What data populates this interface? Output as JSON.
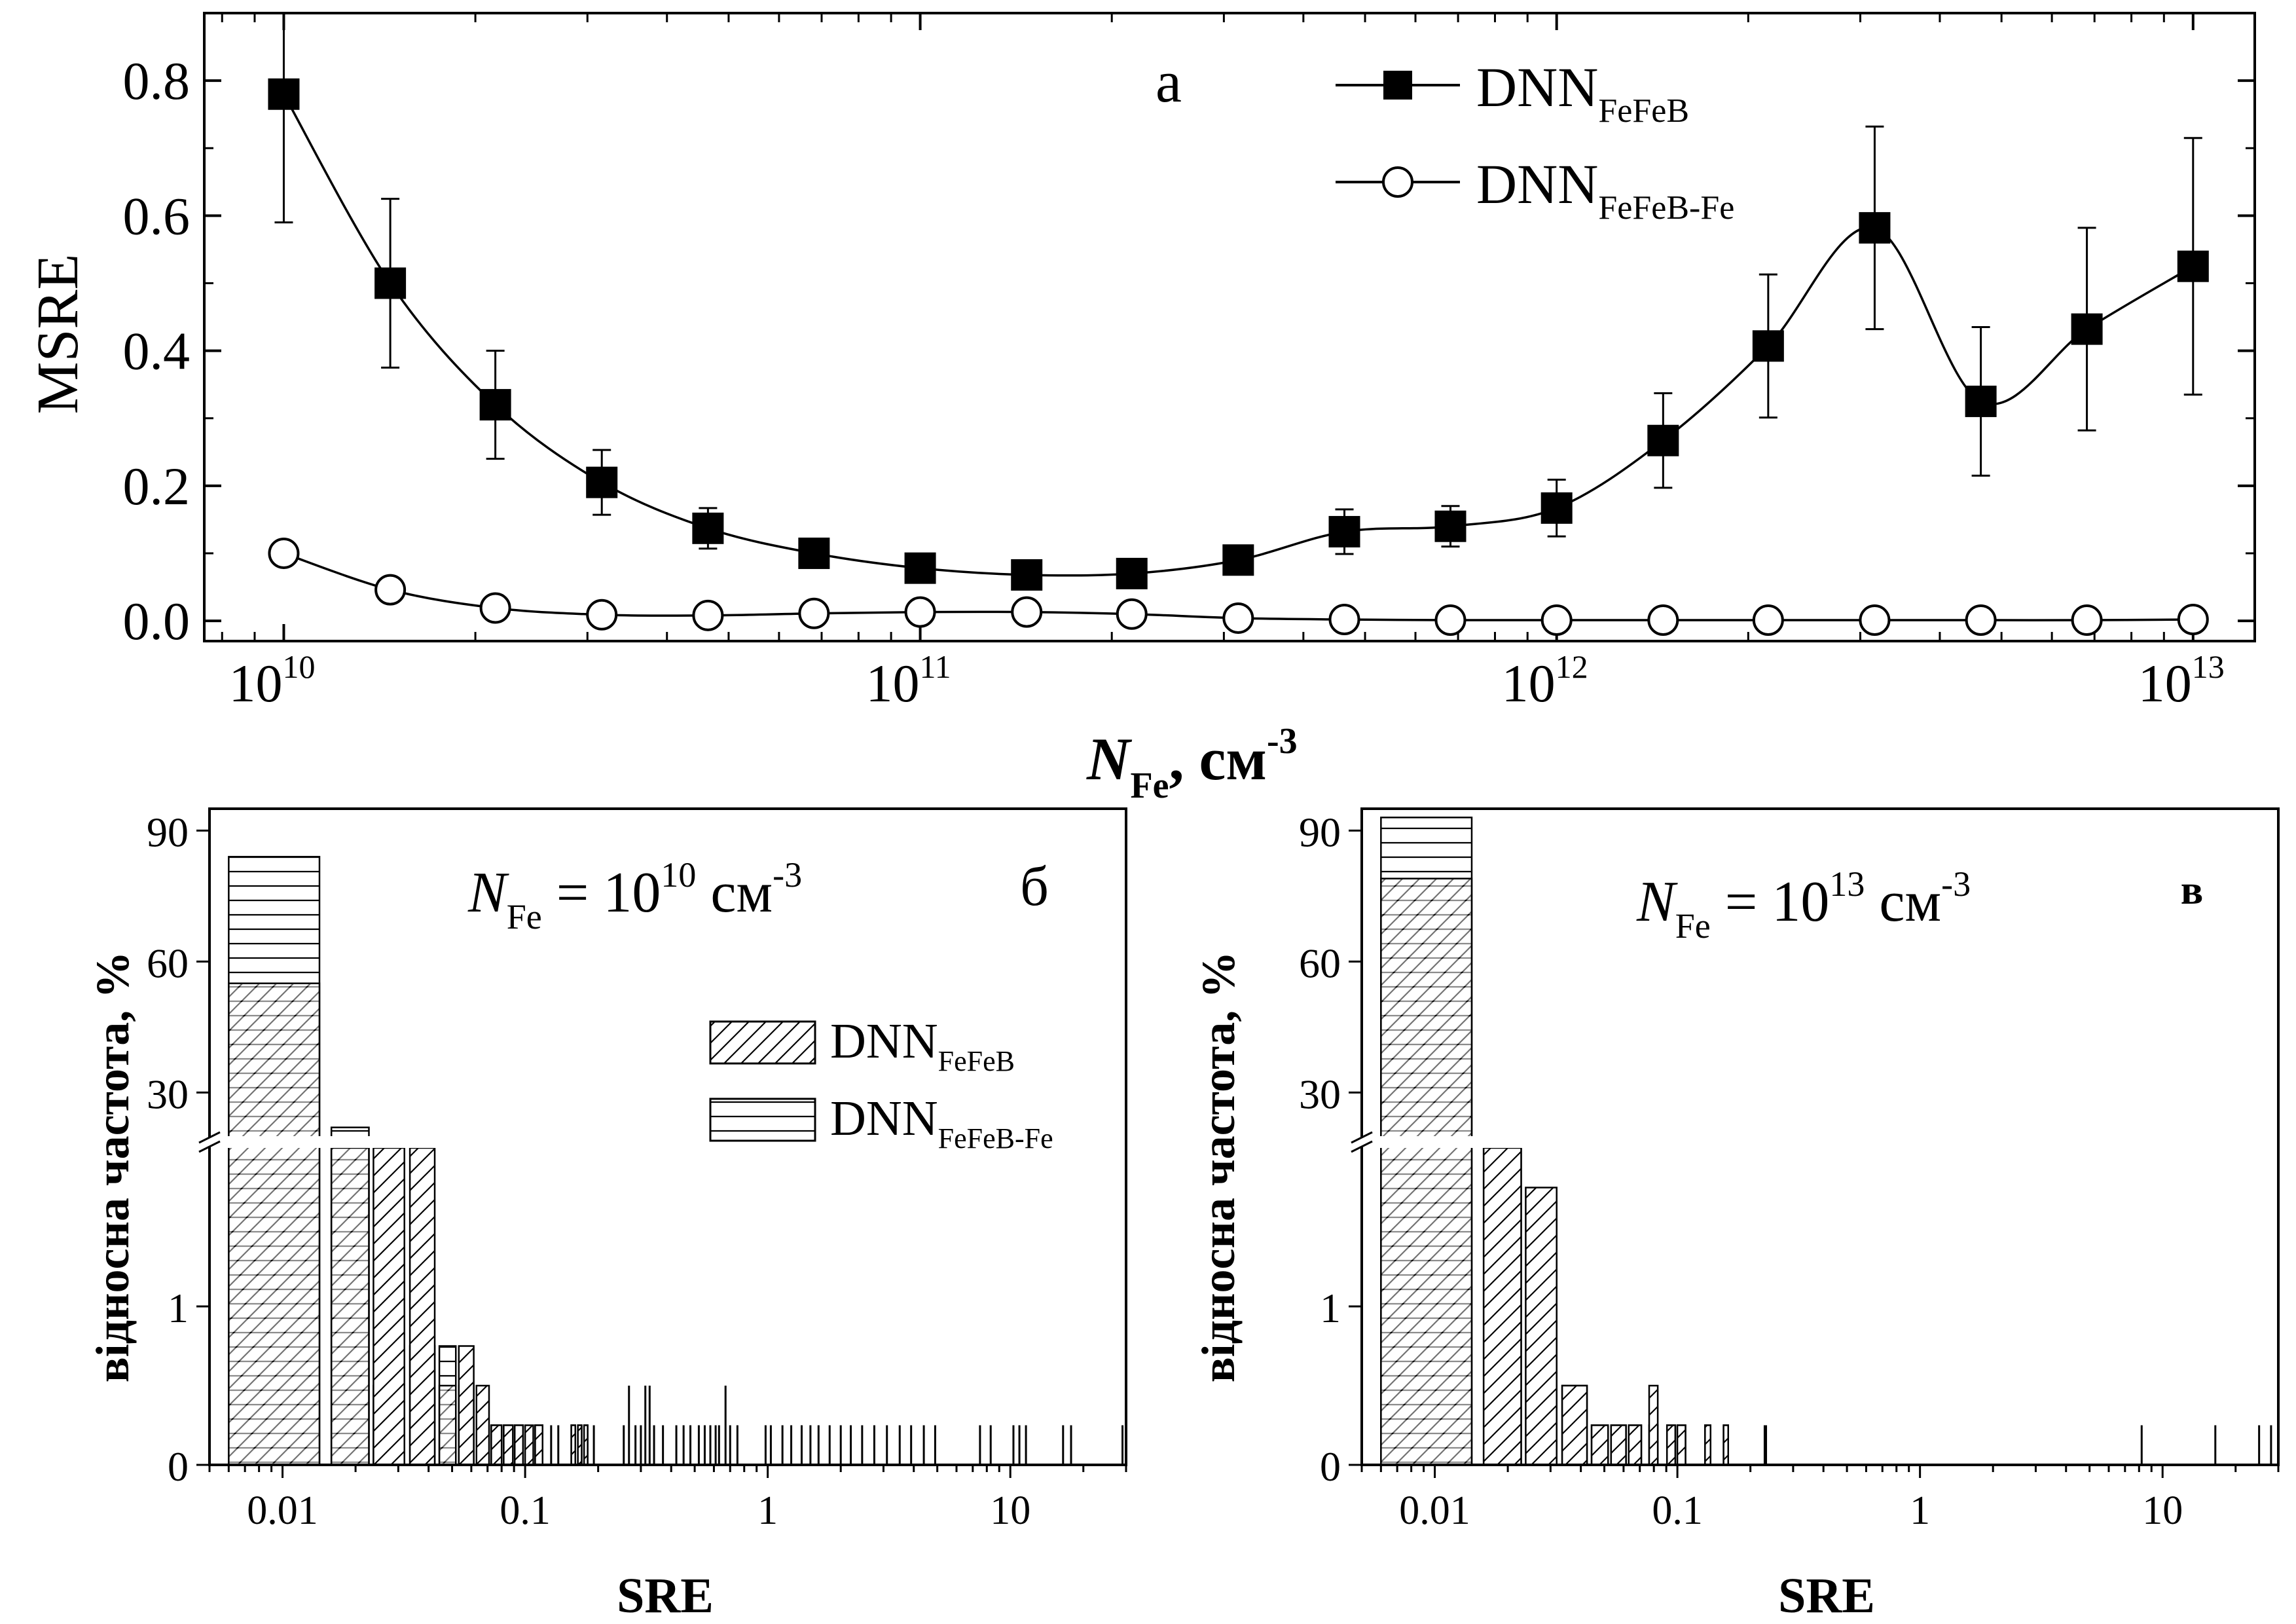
{
  "chart_data": [
    {
      "panel": "а",
      "type": "line",
      "xlabel": "N",
      "xlabel_sub": "Fe",
      "xlabel_unit": ", см",
      "xlabel_unit_sup": "-3",
      "ylabel": "MSRE",
      "x_scale": "log",
      "xlim": [
        7500000000.0,
        12500000000000.0
      ],
      "ylim": [
        -0.03,
        0.9
      ],
      "yticks": [
        "0.0",
        "0.2",
        "0.4",
        "0.6",
        "0.8"
      ],
      "xticks": [
        {
          "base": "10",
          "exp": "10"
        },
        {
          "base": "10",
          "exp": "11"
        },
        {
          "base": "10",
          "exp": "12"
        },
        {
          "base": "10",
          "exp": "13"
        }
      ],
      "x": [
        10000000000.0,
        14700000000.0,
        21500000000.0,
        31600000000.0,
        46400000000.0,
        68100000000.0,
        100000000000.0,
        147000000000.0,
        215000000000.0,
        316000000000.0,
        464000000000.0,
        681000000000.0,
        1000000000000.0,
        1470000000000.0,
        2150000000000.0,
        3160000000000.0,
        4640000000000.0,
        6810000000000.0,
        10000000000000.0
      ],
      "series": [
        {
          "name": "DNN",
          "name_sub": "FeFeB",
          "marker": "square-filled",
          "values": [
            0.78,
            0.5,
            0.32,
            0.205,
            0.137,
            0.1,
            0.078,
            0.068,
            0.07,
            0.09,
            0.132,
            0.14,
            0.167,
            0.267,
            0.407,
            0.582,
            0.325,
            0.432,
            0.525
          ],
          "err": [
            0.19,
            0.125,
            0.08,
            0.048,
            0.03,
            0.012,
            0.01,
            0.01,
            0.01,
            0.012,
            0.033,
            0.03,
            0.042,
            0.07,
            0.106,
            0.15,
            0.11,
            0.15,
            0.19
          ]
        },
        {
          "name": "DNN",
          "name_sub": "FeFeB-Fe",
          "marker": "circle-open",
          "values": [
            0.1,
            0.046,
            0.019,
            0.009,
            0.008,
            0.011,
            0.013,
            0.013,
            0.01,
            0.004,
            0.002,
            0.001,
            0.001,
            0.001,
            0.001,
            0.001,
            0.001,
            0.001,
            0.002
          ]
        }
      ]
    },
    {
      "panel": "б",
      "type": "bar",
      "annotation": {
        "main": "N",
        "sub": "Fe",
        "eq": " = 10",
        "sup": "10",
        "unit": " см",
        "unit_sup": "-3"
      },
      "xlabel": "SRE",
      "ylabel": "відносна частота, %",
      "x_scale": "log",
      "xlim": [
        0.005,
        30
      ],
      "xticks": [
        "0.01",
        "0.1",
        "1",
        "10"
      ],
      "y_broken": true,
      "ylim_lower": [
        0,
        2
      ],
      "ylim_upper": [
        20,
        95
      ],
      "yticks_lower": [
        "0",
        "1"
      ],
      "yticks_upper": [
        "30",
        "60",
        "90"
      ],
      "legend": [
        {
          "name": "DNN",
          "sub": "FeFeB",
          "pattern": "diagonal"
        },
        {
          "name": "DNN",
          "sub": "FeFeB-Fe",
          "pattern": "horizontal"
        }
      ],
      "bins": [
        {
          "x0": 0.006,
          "x1": 0.0142,
          "a": 55,
          "b": 84
        },
        {
          "x0": 0.0159,
          "x1": 0.0227,
          "a": 10,
          "b": 22
        },
        {
          "x0": 0.0237,
          "x1": 0.0318,
          "a": 5,
          "b": 0.5
        },
        {
          "x0": 0.0335,
          "x1": 0.0424,
          "a": 2.5,
          "b": 0.75
        },
        {
          "x0": 0.0443,
          "x1": 0.0518,
          "a": 0.5,
          "b": 0.75
        },
        {
          "x0": 0.0533,
          "x1": 0.0614,
          "a": 0.75,
          "b": 0.5
        },
        {
          "x0": 0.063,
          "x1": 0.071,
          "a": 0.5,
          "b": 0.25
        },
        {
          "x0": 0.0725,
          "x1": 0.08,
          "a": 0.25,
          "b": 0.25
        },
        {
          "x0": 0.0816,
          "x1": 0.089,
          "a": 0.25,
          "b": 0.25
        },
        {
          "x0": 0.0906,
          "x1": 0.098,
          "a": 0.25,
          "b": 0.25
        },
        {
          "x0": 0.1,
          "x1": 0.108,
          "a": 0.25,
          "b": 0
        },
        {
          "x0": 0.11,
          "x1": 0.118,
          "a": 0.25,
          "b": 0.25
        },
        {
          "x0": 0.155,
          "x1": 0.161,
          "a": 0.25,
          "b": 0.25
        },
        {
          "x0": 0.165,
          "x1": 0.171,
          "a": 0.25,
          "b": 0.25
        },
        {
          "x0": 0.175,
          "x1": 0.181,
          "a": 0.25,
          "b": 0.25
        }
      ],
      "spikes": [
        {
          "x": 0.128,
          "h": 0.25
        },
        {
          "x": 0.137,
          "h": 0.25
        },
        {
          "x": 0.192,
          "h": 0.25
        },
        {
          "x": 0.255,
          "h": 0.25
        },
        {
          "x": 0.268,
          "h": 0.5
        },
        {
          "x": 0.285,
          "h": 0.25
        },
        {
          "x": 0.3,
          "h": 0.25
        },
        {
          "x": 0.313,
          "h": 0.5
        },
        {
          "x": 0.326,
          "h": 0.5
        },
        {
          "x": 0.34,
          "h": 0.25
        },
        {
          "x": 0.37,
          "h": 0.25
        },
        {
          "x": 0.42,
          "h": 0.25
        },
        {
          "x": 0.45,
          "h": 0.25
        },
        {
          "x": 0.48,
          "h": 0.25
        },
        {
          "x": 0.52,
          "h": 0.25
        },
        {
          "x": 0.55,
          "h": 0.25
        },
        {
          "x": 0.58,
          "h": 0.25
        },
        {
          "x": 0.61,
          "h": 0.25
        },
        {
          "x": 0.63,
          "h": 0.25
        },
        {
          "x": 0.67,
          "h": 0.5
        },
        {
          "x": 0.7,
          "h": 0.25
        },
        {
          "x": 0.75,
          "h": 0.25
        },
        {
          "x": 0.98,
          "h": 0.25
        },
        {
          "x": 1.03,
          "h": 0.25
        },
        {
          "x": 1.15,
          "h": 0.25
        },
        {
          "x": 1.25,
          "h": 0.25
        },
        {
          "x": 1.38,
          "h": 0.25
        },
        {
          "x": 1.5,
          "h": 0.25
        },
        {
          "x": 1.62,
          "h": 0.25
        },
        {
          "x": 1.8,
          "h": 0.25
        },
        {
          "x": 2.0,
          "h": 0.25
        },
        {
          "x": 2.2,
          "h": 0.25
        },
        {
          "x": 2.45,
          "h": 0.25
        },
        {
          "x": 2.75,
          "h": 0.25
        },
        {
          "x": 3.1,
          "h": 0.25
        },
        {
          "x": 3.5,
          "h": 0.25
        },
        {
          "x": 3.9,
          "h": 0.25
        },
        {
          "x": 4.4,
          "h": 0.25
        },
        {
          "x": 4.9,
          "h": 0.25
        },
        {
          "x": 7.5,
          "h": 0.25
        },
        {
          "x": 8.3,
          "h": 0.25
        },
        {
          "x": 10.3,
          "h": 0.25
        },
        {
          "x": 10.9,
          "h": 0.25
        },
        {
          "x": 11.6,
          "h": 0.25
        },
        {
          "x": 16.5,
          "h": 0.25
        },
        {
          "x": 17.8,
          "h": 0.25
        },
        {
          "x": 29,
          "h": 0.25
        }
      ]
    },
    {
      "panel": "в",
      "type": "bar",
      "annotation": {
        "main": "N",
        "sub": "Fe",
        "eq": " = 10",
        "sup": "13",
        "unit": " см",
        "unit_sup": "-3"
      },
      "xlabel": "SRE",
      "ylabel": "відносна частота, %",
      "x_scale": "log",
      "xlim": [
        0.005,
        30
      ],
      "xticks": [
        "0.01",
        "0.1",
        "1",
        "10"
      ],
      "y_broken": true,
      "ylim_lower": [
        0,
        2
      ],
      "ylim_upper": [
        20,
        95
      ],
      "yticks_lower": [
        "0",
        "1"
      ],
      "yticks_upper": [
        "30",
        "60",
        "90"
      ],
      "bins": [
        {
          "x0": 0.006,
          "x1": 0.0142,
          "a": 79,
          "b": 93
        },
        {
          "x0": 0.0159,
          "x1": 0.0227,
          "a": 10,
          "b": 2
        },
        {
          "x0": 0.0237,
          "x1": 0.0318,
          "a": 1.75,
          "b": 0
        },
        {
          "x0": 0.0335,
          "x1": 0.0424,
          "a": 0.5,
          "b": 0.5
        },
        {
          "x0": 0.0443,
          "x1": 0.0518,
          "a": 0.25,
          "b": 0.25
        },
        {
          "x0": 0.0533,
          "x1": 0.0614,
          "a": 0.25,
          "b": 0.25
        },
        {
          "x0": 0.063,
          "x1": 0.071,
          "a": 0.25,
          "b": 0.25
        },
        {
          "x0": 0.0765,
          "x1": 0.083,
          "a": 0.5,
          "b": 0.25
        },
        {
          "x0": 0.0906,
          "x1": 0.098,
          "a": 0.25,
          "b": 0.25
        },
        {
          "x0": 0.1,
          "x1": 0.108,
          "a": 0.25,
          "b": 0.25
        },
        {
          "x0": 0.13,
          "x1": 0.137,
          "a": 0.25,
          "b": 0.25
        },
        {
          "x0": 0.155,
          "x1": 0.162,
          "a": 0.25,
          "b": 0.25
        }
      ],
      "spikes": [
        {
          "x": 0.229,
          "h": 0.25
        },
        {
          "x": 0.232,
          "h": 0.25
        },
        {
          "x": 8.2,
          "h": 0.25
        },
        {
          "x": 16.5,
          "h": 0.25
        },
        {
          "x": 25,
          "h": 0.25
        },
        {
          "x": 28,
          "h": 0.25
        }
      ]
    }
  ]
}
